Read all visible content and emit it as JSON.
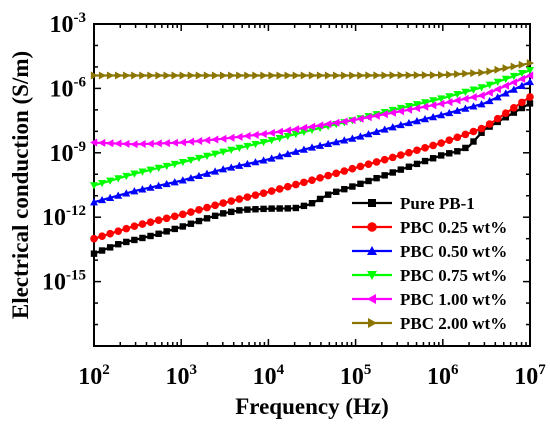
{
  "chart_data": {
    "type": "line",
    "xlabel": "Frequency (Hz)",
    "ylabel": "Electrical conduction (S/m)",
    "x_scale": "log",
    "y_scale": "log",
    "xlim": [
      100,
      10000000
    ],
    "ylim": [
      1e-18,
      0.001
    ],
    "x_tick_labels": [
      {
        "base": "10",
        "exp": "2",
        "value": 100
      },
      {
        "base": "10",
        "exp": "3",
        "value": 1000
      },
      {
        "base": "10",
        "exp": "4",
        "value": 10000
      },
      {
        "base": "10",
        "exp": "5",
        "value": 100000
      },
      {
        "base": "10",
        "exp": "6",
        "value": 1000000
      },
      {
        "base": "10",
        "exp": "7",
        "value": 10000000
      }
    ],
    "y_tick_labels": [
      {
        "base": "10",
        "exp": "-3",
        "value": 0.001
      },
      {
        "base": "10",
        "exp": "-6",
        "value": 1e-06
      },
      {
        "base": "10",
        "exp": "-9",
        "value": 1e-09
      },
      {
        "base": "10",
        "exp": "-12",
        "value": 1e-12
      },
      {
        "base": "10",
        "exp": "-15",
        "value": 1e-15
      }
    ],
    "legend_position": "bottom-right",
    "series": [
      {
        "name": "Pure PB-1",
        "color": "#000000",
        "marker": "square",
        "points": [
          [
            100,
            2e-14
          ],
          [
            200,
            6e-14
          ],
          [
            500,
            1.5e-13
          ],
          [
            1000,
            3.5e-13
          ],
          [
            2000,
            9e-13
          ],
          [
            3000,
            1.5e-12
          ],
          [
            5000,
            2.2e-12
          ],
          [
            10000,
            2.5e-12
          ],
          [
            20000,
            2.6e-12
          ],
          [
            30000,
            4e-12
          ],
          [
            50000,
            1.2e-11
          ],
          [
            100000,
            3e-11
          ],
          [
            200000,
            8e-11
          ],
          [
            500000,
            3e-10
          ],
          [
            1000000,
            8e-10
          ],
          [
            1500000,
            1.2e-09
          ],
          [
            2000000,
            2e-09
          ],
          [
            3000000,
            1.2e-08
          ],
          [
            5000000,
            4e-08
          ],
          [
            10000000,
            2e-07
          ]
        ]
      },
      {
        "name": "PBC 0.25 wt%",
        "color": "#ff0000",
        "marker": "circle",
        "points": [
          [
            100,
            1e-13
          ],
          [
            300,
            4e-13
          ],
          [
            1000,
            1.3e-12
          ],
          [
            3000,
            4.5e-12
          ],
          [
            10000,
            1.5e-11
          ],
          [
            30000,
            5e-11
          ],
          [
            100000,
            2e-10
          ],
          [
            300000,
            7e-10
          ],
          [
            1000000,
            3e-09
          ],
          [
            3000000,
            1.5e-08
          ],
          [
            10000000,
            4e-07
          ]
        ]
      },
      {
        "name": "PBC 0.50 wt%",
        "color": "#0000ff",
        "marker": "triangle-up",
        "points": [
          [
            100,
            5e-12
          ],
          [
            300,
            1.7e-11
          ],
          [
            1000,
            5e-11
          ],
          [
            3000,
            1.7e-10
          ],
          [
            10000,
            5e-10
          ],
          [
            30000,
            1.7e-09
          ],
          [
            100000,
            5e-09
          ],
          [
            300000,
            1.8e-08
          ],
          [
            1000000,
            6e-08
          ],
          [
            3000000,
            2e-07
          ],
          [
            10000000,
            2e-06
          ]
        ]
      },
      {
        "name": "PBC 0.75 wt%",
        "color": "#00ff00",
        "marker": "triangle-down",
        "points": [
          [
            100,
            3e-11
          ],
          [
            300,
            1.1e-10
          ],
          [
            1000,
            3.5e-10
          ],
          [
            3000,
            1.1e-09
          ],
          [
            10000,
            3.5e-09
          ],
          [
            30000,
            1.1e-08
          ],
          [
            100000,
            3.5e-08
          ],
          [
            300000,
            1.1e-07
          ],
          [
            1000000,
            3.5e-07
          ],
          [
            3000000,
            1.2e-06
          ],
          [
            10000000,
            7e-06
          ]
        ]
      },
      {
        "name": "PBC 1.00 wt%",
        "color": "#ff00ff",
        "marker": "triangle-left",
        "points": [
          [
            100,
            3e-09
          ],
          [
            300,
            2.5e-09
          ],
          [
            1000,
            3e-09
          ],
          [
            3000,
            4.5e-09
          ],
          [
            10000,
            8e-09
          ],
          [
            30000,
            1.6e-08
          ],
          [
            100000,
            3.5e-08
          ],
          [
            300000,
            8e-08
          ],
          [
            1000000,
            2e-07
          ],
          [
            3000000,
            5e-07
          ],
          [
            10000000,
            4e-06
          ]
        ]
      },
      {
        "name": "PBC 2.00 wt%",
        "color": "#8b7500",
        "marker": "triangle-right",
        "points": [
          [
            100,
            4e-06
          ],
          [
            1000,
            4e-06
          ],
          [
            10000,
            4e-06
          ],
          [
            100000,
            4e-06
          ],
          [
            1000000,
            4.2e-06
          ],
          [
            3000000,
            5.5e-06
          ],
          [
            10000000,
            1.5e-05
          ]
        ]
      }
    ]
  }
}
